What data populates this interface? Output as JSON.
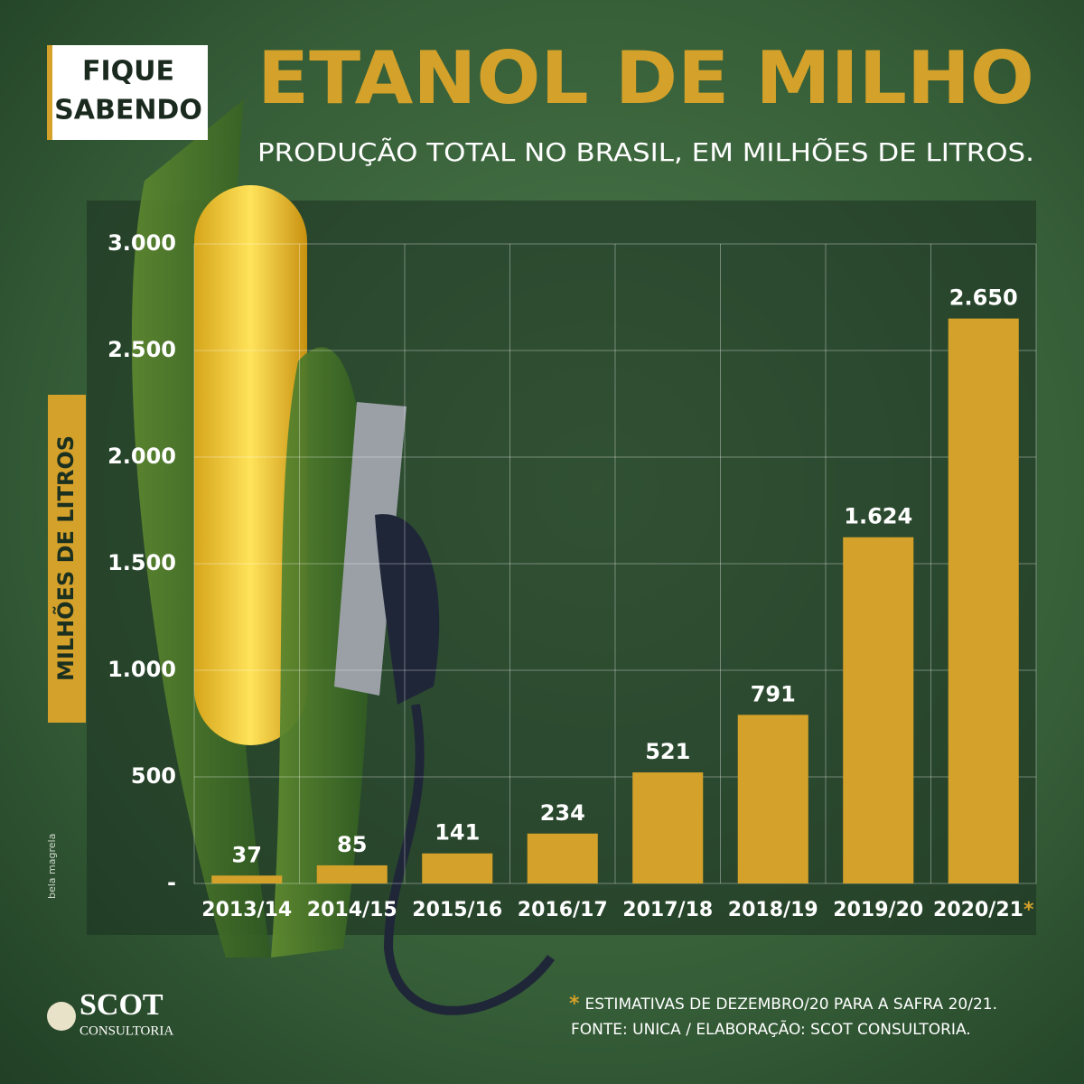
{
  "badge": [
    "FIQUE",
    "SABENDO"
  ],
  "chart_data": {
    "type": "bar",
    "title": "ETANOL DE MILHO",
    "subtitle": "PRODUÇÃO TOTAL NO BRASIL, EM MILHÕES DE LITROS.",
    "y_label": "MILHÕES  DE  LITROS",
    "categories": [
      "2013/14",
      "2014/15",
      "2015/16",
      "2016/17",
      "2017/18",
      "2018/19",
      "2019/20",
      "2020/21"
    ],
    "estimate_marker": "*",
    "values": [
      37,
      85,
      141,
      234,
      521,
      791,
      1624,
      2650
    ],
    "value_labels": [
      "37",
      "85",
      "141",
      "234",
      "521",
      "791",
      "1.624",
      "2.650"
    ],
    "color": "#d4a12a",
    "ylim": [
      0,
      3000
    ],
    "yticks": [
      {
        "value": 0,
        "label": "-"
      },
      500,
      {
        "value": 1000,
        "label": "1.000"
      },
      {
        "value": 1500,
        "label": "1.500"
      },
      {
        "value": 2000,
        "label": "2.000"
      },
      {
        "value": 2500,
        "label": "2.500"
      },
      {
        "value": 3000,
        "label": "3.000"
      }
    ],
    "grid": true
  },
  "footnote": "ESTIMATIVAS DE DEZEMBRO/20 PARA A SAFRA 20/21.",
  "source": "FONTE:  UNICA / ELABORAÇÃO: SCOT CONSULTORIA.",
  "logo": [
    "SCOT",
    "CONSULTORIA"
  ],
  "credit": "bela magrela"
}
